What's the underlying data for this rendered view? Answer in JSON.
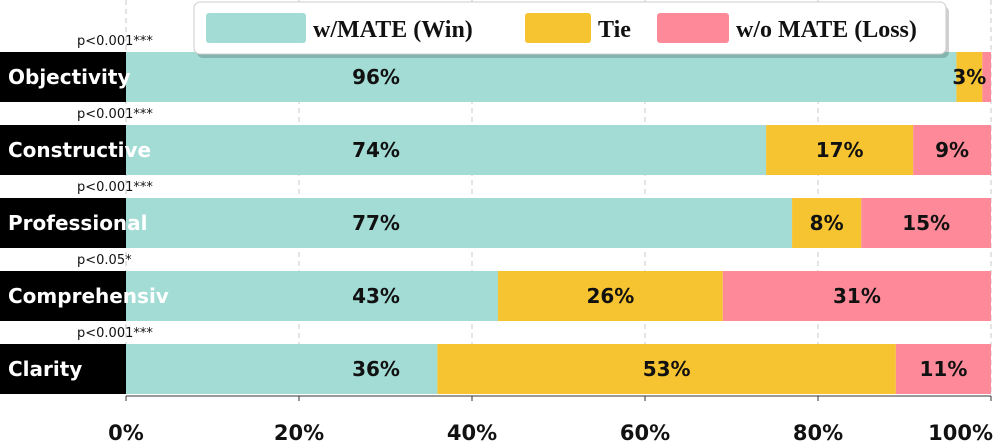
{
  "chart_data": {
    "type": "bar",
    "orientation": "horizontal",
    "stacked": true,
    "categories": [
      "Objectivity",
      "Constructive",
      "Professional",
      "Comprehensiv",
      "Clarity"
    ],
    "significance": [
      "p<0.001***",
      "p<0.001***",
      "p<0.001***",
      "p<0.05*",
      "p<0.001***"
    ],
    "series": [
      {
        "name": "w/MATE (Win)",
        "color": "#a2dcd5",
        "values": [
          96,
          74,
          77,
          43,
          36
        ],
        "labels": [
          "96%",
          "74%",
          "77%",
          "43%",
          "36%"
        ]
      },
      {
        "name": "Tie",
        "color": "#f6c431",
        "values": [
          3,
          17,
          8,
          26,
          53
        ],
        "labels": [
          "3%",
          "17%",
          "8%",
          "26%",
          "53%"
        ]
      },
      {
        "name": "w/o MATE (Loss)",
        "color": "#fe8a99",
        "values": [
          1,
          9,
          15,
          31,
          11
        ],
        "labels": [
          "",
          "9%",
          "15%",
          "31%",
          "11%"
        ]
      }
    ],
    "xlim": [
      0,
      100
    ],
    "xticks": [
      0,
      20,
      40,
      60,
      80,
      100
    ],
    "xtick_labels": [
      "0%",
      "20%",
      "40%",
      "60%",
      "80%",
      "100%"
    ],
    "grid": "vertical dashed",
    "legend_position": "top-center",
    "title": "",
    "xlabel": "",
    "ylabel": ""
  }
}
